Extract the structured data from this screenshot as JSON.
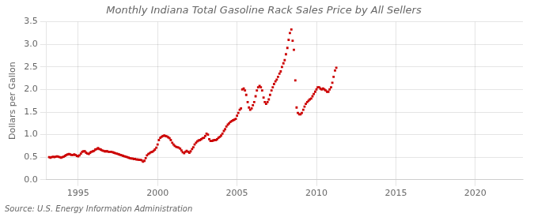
{
  "chart_data": {
    "type": "scatter",
    "title": "Monthly Indiana Total Gasoline Rack Sales Price by All Sellers",
    "ylabel": "Dollars per Gallon",
    "source": "Source: U.S. Energy Information Administration",
    "color": "#CC0000",
    "marker": "square",
    "grid": true,
    "xlim": [
      1993.0,
      2023.0
    ],
    "ylim": [
      0.0,
      3.5
    ],
    "xticks": [
      1995,
      2000,
      2005,
      2010,
      2015,
      2020
    ],
    "yticks": [
      {
        "value": 0.0,
        "label": "0.0"
      },
      0.5,
      {
        "value": 1.0,
        "label": "1.0"
      },
      1.5,
      {
        "value": 2.0,
        "label": "2.0"
      },
      2.5,
      {
        "value": 3.0,
        "label": "3.0"
      },
      3.5
    ],
    "x": [
      1993.17,
      1993.25,
      1993.33,
      1993.42,
      1993.5,
      1993.58,
      1993.67,
      1993.75,
      1993.83,
      1993.92,
      1994.0,
      1994.08,
      1994.17,
      1994.25,
      1994.33,
      1994.42,
      1994.5,
      1994.58,
      1994.67,
      1994.75,
      1994.83,
      1994.92,
      1995.0,
      1995.08,
      1995.17,
      1995.25,
      1995.33,
      1995.42,
      1995.5,
      1995.58,
      1995.67,
      1995.75,
      1995.83,
      1995.92,
      1996.0,
      1996.08,
      1996.17,
      1996.25,
      1996.33,
      1996.42,
      1996.5,
      1996.58,
      1996.67,
      1996.75,
      1996.83,
      1996.92,
      1997.0,
      1997.08,
      1997.17,
      1997.25,
      1997.33,
      1997.42,
      1997.5,
      1997.58,
      1997.67,
      1997.75,
      1997.83,
      1997.92,
      1998.0,
      1998.08,
      1998.17,
      1998.25,
      1998.33,
      1998.42,
      1998.5,
      1998.58,
      1998.67,
      1998.75,
      1998.83,
      1998.92,
      1999.0,
      1999.08,
      1999.17,
      1999.25,
      1999.33,
      1999.42,
      1999.5,
      1999.58,
      1999.67,
      1999.75,
      1999.83,
      1999.92,
      2000.0,
      2000.08,
      2000.17,
      2000.25,
      2000.33,
      2000.42,
      2000.5,
      2000.58,
      2000.67,
      2000.75,
      2000.83,
      2000.92,
      2001.0,
      2001.08,
      2001.17,
      2001.25,
      2001.33,
      2001.42,
      2001.5,
      2001.58,
      2001.67,
      2001.75,
      2001.83,
      2001.92,
      2002.0,
      2002.08,
      2002.17,
      2002.25,
      2002.33,
      2002.42,
      2002.5,
      2002.58,
      2002.67,
      2002.75,
      2002.83,
      2002.92,
      2003.0,
      2003.08,
      2003.17,
      2003.25,
      2003.33,
      2003.42,
      2003.5,
      2003.58,
      2003.67,
      2003.75,
      2003.83,
      2003.92,
      2004.0,
      2004.08,
      2004.17,
      2004.25,
      2004.33,
      2004.42,
      2004.5,
      2004.58,
      2004.67,
      2004.75,
      2004.83,
      2004.92,
      2005.0,
      2005.08,
      2005.17,
      2005.25,
      2005.33,
      2005.42,
      2005.5,
      2005.58,
      2005.67,
      2005.75,
      2005.83,
      2005.92,
      2006.0,
      2006.08,
      2006.17,
      2006.25,
      2006.33,
      2006.42,
      2006.5,
      2006.58,
      2006.67,
      2006.75,
      2006.83,
      2006.92,
      2007.0,
      2007.08,
      2007.17,
      2007.25,
      2007.33,
      2007.42,
      2007.5,
      2007.58,
      2007.67,
      2007.75,
      2007.83,
      2007.92,
      2008.0,
      2008.08,
      2008.17,
      2008.25,
      2008.33,
      2008.42,
      2008.5,
      2008.58,
      2008.67,
      2008.75,
      2008.83,
      2008.92,
      2009.0,
      2009.08,
      2009.17,
      2009.25,
      2009.33,
      2009.42,
      2009.5,
      2009.58,
      2009.67,
      2009.75,
      2009.83,
      2009.92,
      2010.0,
      2010.08,
      2010.17,
      2010.25,
      2010.33,
      2010.42,
      2010.5,
      2010.58,
      2010.67,
      2010.75,
      2010.83,
      2010.92,
      2011.0,
      2011.08,
      2011.17,
      2011.25
    ],
    "values": [
      0.5,
      0.49,
      0.5,
      0.51,
      0.5,
      0.51,
      0.52,
      0.51,
      0.5,
      0.49,
      0.5,
      0.51,
      0.53,
      0.55,
      0.56,
      0.57,
      0.56,
      0.55,
      0.55,
      0.56,
      0.55,
      0.53,
      0.52,
      0.54,
      0.58,
      0.62,
      0.63,
      0.63,
      0.6,
      0.58,
      0.57,
      0.6,
      0.62,
      0.63,
      0.64,
      0.67,
      0.68,
      0.7,
      0.68,
      0.67,
      0.65,
      0.64,
      0.63,
      0.63,
      0.63,
      0.62,
      0.62,
      0.62,
      0.61,
      0.6,
      0.59,
      0.58,
      0.57,
      0.56,
      0.55,
      0.54,
      0.53,
      0.52,
      0.51,
      0.5,
      0.49,
      0.48,
      0.47,
      0.47,
      0.46,
      0.46,
      0.45,
      0.45,
      0.44,
      0.44,
      0.43,
      0.4,
      0.42,
      0.48,
      0.54,
      0.57,
      0.59,
      0.61,
      0.62,
      0.64,
      0.67,
      0.71,
      0.78,
      0.88,
      0.93,
      0.95,
      0.97,
      0.98,
      0.97,
      0.96,
      0.94,
      0.92,
      0.88,
      0.82,
      0.78,
      0.75,
      0.73,
      0.72,
      0.71,
      0.69,
      0.65,
      0.61,
      0.59,
      0.62,
      0.64,
      0.62,
      0.6,
      0.63,
      0.68,
      0.72,
      0.78,
      0.82,
      0.85,
      0.87,
      0.88,
      0.9,
      0.92,
      0.93,
      0.97,
      1.02,
      1.0,
      0.9,
      0.86,
      0.86,
      0.87,
      0.88,
      0.88,
      0.9,
      0.93,
      0.95,
      0.98,
      1.02,
      1.08,
      1.12,
      1.18,
      1.22,
      1.25,
      1.28,
      1.3,
      1.32,
      1.33,
      1.35,
      1.42,
      1.48,
      1.55,
      1.58,
      2.0,
      2.02,
      1.98,
      1.88,
      1.72,
      1.6,
      1.55,
      1.58,
      1.65,
      1.72,
      1.85,
      1.98,
      2.05,
      2.08,
      2.05,
      1.98,
      1.82,
      1.72,
      1.68,
      1.72,
      1.78,
      1.88,
      1.98,
      2.05,
      2.12,
      2.18,
      2.22,
      2.28,
      2.35,
      2.4,
      2.5,
      2.58,
      2.65,
      2.78,
      2.92,
      3.1,
      3.25,
      3.33,
      3.08,
      2.88,
      2.2,
      1.6,
      1.48,
      1.45,
      1.45,
      1.48,
      1.55,
      1.62,
      1.68,
      1.72,
      1.75,
      1.78,
      1.8,
      1.85,
      1.9,
      1.95,
      2.0,
      2.05,
      2.05,
      2.02,
      2.0,
      2.02,
      2.0,
      1.98,
      1.95,
      1.95,
      2.0,
      2.05,
      2.15,
      2.28,
      2.42,
      2.48
    ]
  }
}
